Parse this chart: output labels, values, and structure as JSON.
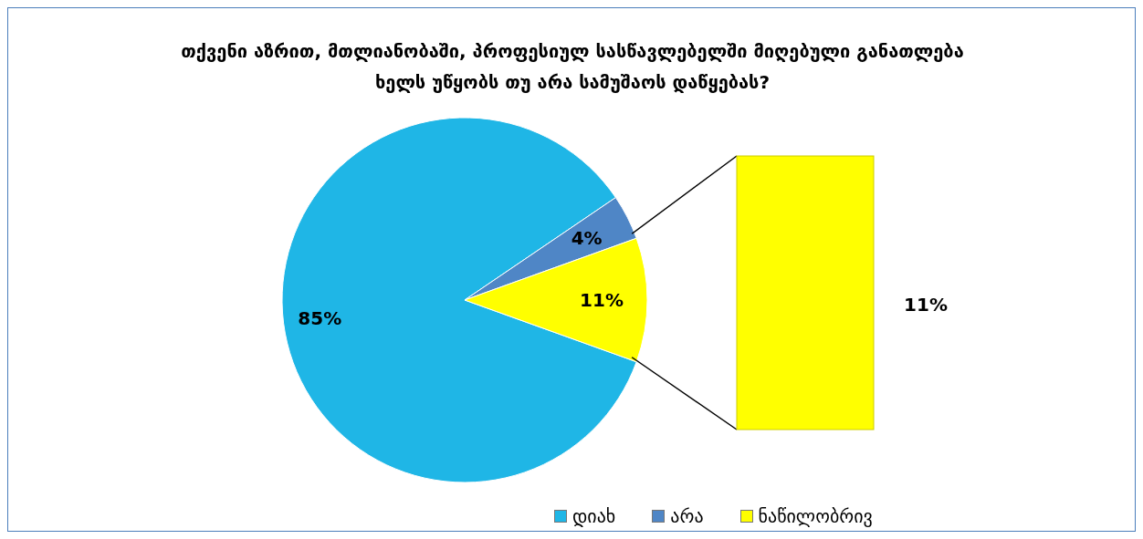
{
  "chart_data": {
    "type": "pie",
    "title": "თქვენი აზრით, მთლიანობაში, პროფესიულ სასწავლებელში მიღებული განათლება ხელს უწყობს თუ არა სამუშაოს დაწყებას?",
    "categories": [
      "დიახ",
      "არა",
      "ნაწილობრივ"
    ],
    "values": [
      85,
      4,
      11
    ],
    "colors": [
      "#1fb6e6",
      "#4f86c6",
      "#ffff00"
    ],
    "value_labels": [
      "85%",
      "4%",
      "11%"
    ],
    "legend": "bottom",
    "annotations": [
      "11%"
    ]
  }
}
